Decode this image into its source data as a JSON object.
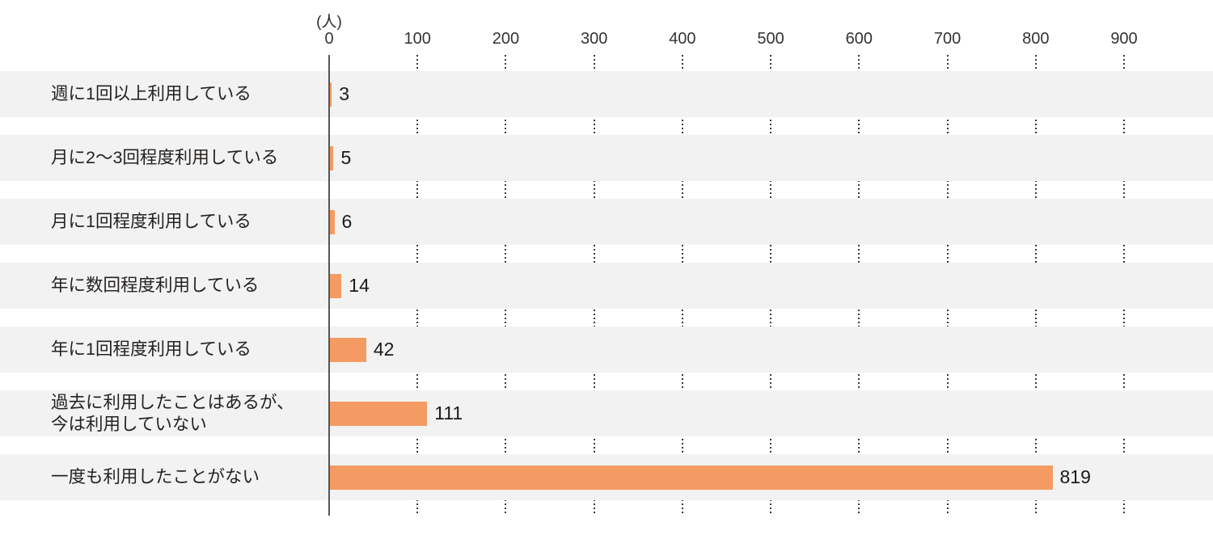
{
  "chart_data": {
    "type": "bar",
    "orientation": "horizontal",
    "title": "",
    "unit_label": "(人)",
    "categories": [
      "週に1回以上利用している",
      "月に2〜3回程度利用している",
      "月に1回程度利用している",
      "年に数回程度利用している",
      "年に1回程度利用している",
      "過去に利用したことはあるが、\n今は利用していない",
      "一度も利用したことがない"
    ],
    "values": [
      3,
      5,
      6,
      14,
      42,
      111,
      819
    ],
    "x_ticks": [
      0,
      100,
      200,
      300,
      400,
      500,
      600,
      700,
      800,
      900
    ],
    "xlim": [
      0,
      900
    ],
    "grid": "dotted-vertical-between-rows",
    "legend": "none",
    "colors": {
      "bar": "#F39B62",
      "row_band": "#F2F2F2",
      "axis_line": "#555555",
      "gridline_dots": "#3A3A3A",
      "label_text": "#252220",
      "tick_text": "#333333",
      "background": "#FFFFFF"
    }
  }
}
